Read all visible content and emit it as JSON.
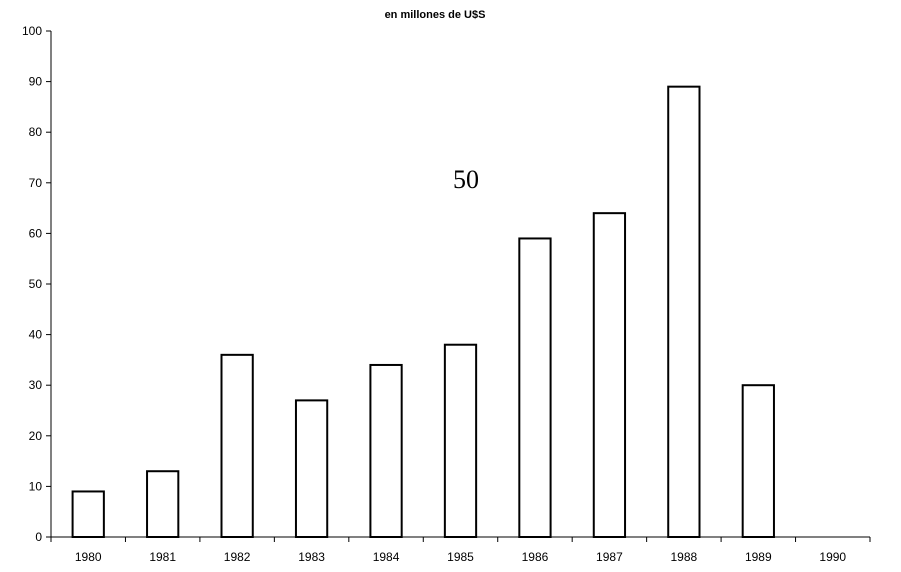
{
  "chart_data": {
    "type": "bar",
    "subtitle": "en millones de U$S",
    "annotation": "50",
    "categories": [
      "1980",
      "1981",
      "1982",
      "1983",
      "1984",
      "1985",
      "1986",
      "1987",
      "1988",
      "1989",
      "1990"
    ],
    "values": [
      9,
      13,
      36,
      27,
      34,
      38,
      59,
      64,
      89,
      30,
      0
    ],
    "ylim": [
      0,
      100
    ],
    "yticks": [
      0,
      10,
      20,
      30,
      40,
      50,
      60,
      70,
      80,
      90,
      100
    ],
    "grid": false,
    "legend": "none",
    "bar_fill": "#ffffff",
    "bar_stroke": "#000000"
  }
}
